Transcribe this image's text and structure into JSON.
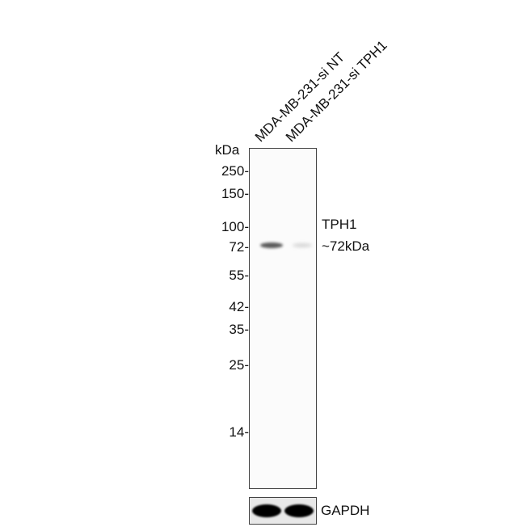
{
  "lanes": [
    "MDA-MB-231-si NT",
    "MDA-MB-231-si TPH1"
  ],
  "marker_unit": "kDa",
  "markers": [
    "250-",
    "150-",
    "100-",
    "72-",
    "55-",
    "42-",
    "35-",
    "25-",
    "14-"
  ],
  "target": {
    "name": "TPH1",
    "size": "~72kDa"
  },
  "loading_control": "GAPDH",
  "band_intensity": {
    "target": [
      0.75,
      0.12
    ],
    "loading_control": [
      1.0,
      1.0
    ]
  }
}
